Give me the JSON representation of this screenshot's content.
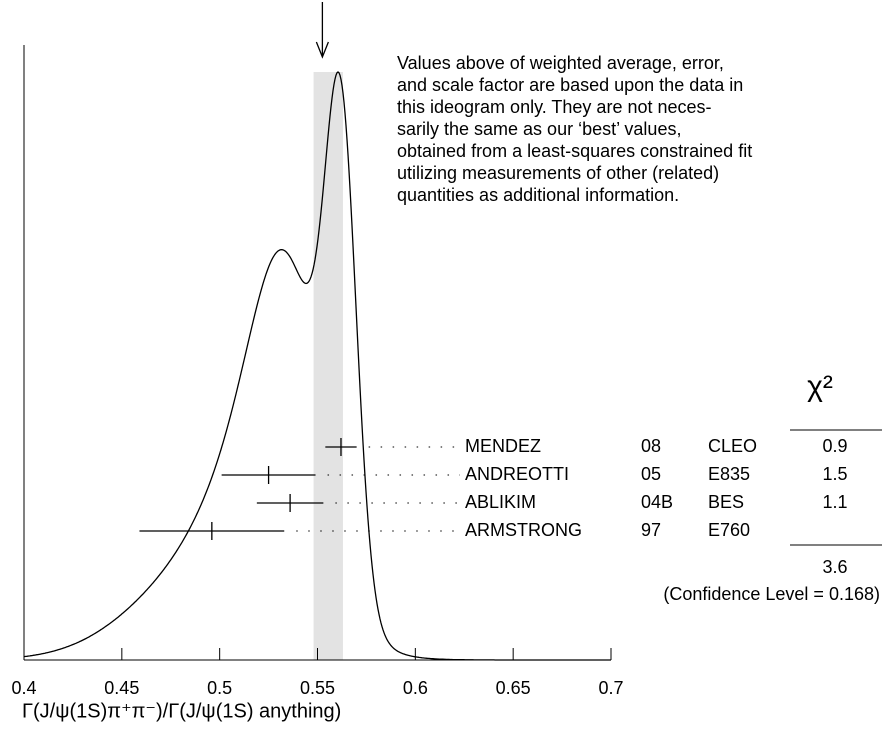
{
  "chart_data": {
    "type": "ideogram",
    "xlabel": "Γ(J/ψ(1S)π⁺π⁻)/Γ(J/ψ(1S) anything)",
    "xlim": [
      0.4,
      0.7
    ],
    "xticks": [
      0.4,
      0.45,
      0.5,
      0.55,
      0.6,
      0.65,
      0.7
    ],
    "band": [
      0.548,
      0.563
    ],
    "arrow": 0.5525,
    "note": [
      "Values above of weighted average, error,",
      "and scale factor are based upon the data in",
      "this ideogram only.  They are not neces-",
      "sarily the same as our ‘best’ values,",
      "obtained from a least-squares constrained fit",
      "utilizing measurements of other (related)",
      "quantities as additional information."
    ],
    "chi2_header": "χ²",
    "measurements": [
      {
        "name": "MENDEZ",
        "year": "08",
        "experiment": "CLEO",
        "value": 0.562,
        "error": 0.008,
        "chi2": 0.9
      },
      {
        "name": "ANDREOTTI",
        "year": "05",
        "experiment": "E835",
        "value": 0.525,
        "error": 0.024,
        "chi2": 1.5
      },
      {
        "name": "ABLIKIM",
        "year": "04B",
        "experiment": "BES",
        "value": 0.536,
        "error": 0.017,
        "chi2": 1.1
      },
      {
        "name": "ARMSTRONG",
        "year": "97",
        "experiment": "E760",
        "value": 0.496,
        "error": 0.037,
        "chi2": null
      }
    ],
    "total_chi2": 3.6,
    "confidence": "(Confidence Level = 0.168)"
  }
}
